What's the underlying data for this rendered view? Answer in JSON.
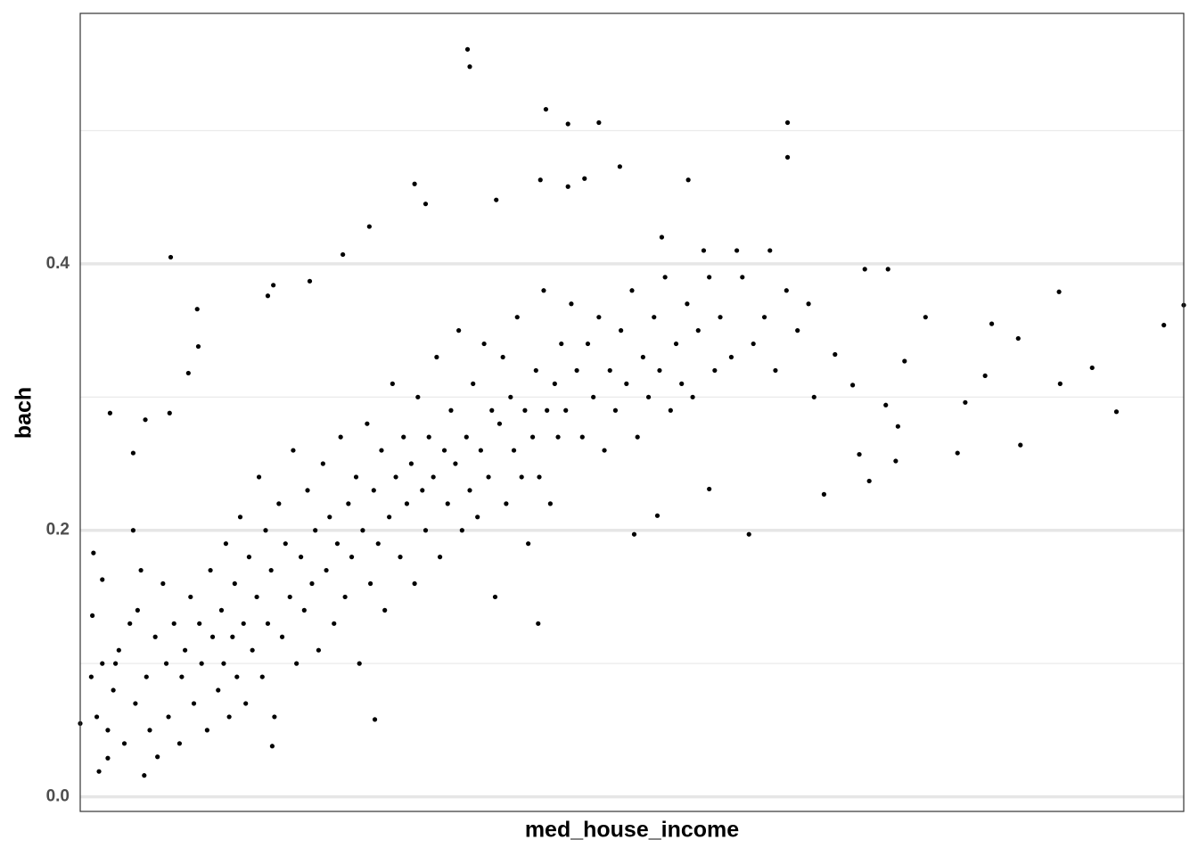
{
  "chart_data": {
    "type": "scatter",
    "x_label": "med_house_income",
    "y_label": "bach",
    "color": "#000000",
    "xlim": [
      0,
      100
    ],
    "ylim": [
      -0.011,
      0.588
    ],
    "yticks": [
      {
        "value": 0,
        "label": "0.0"
      },
      0.2,
      0.4
    ],
    "minor_yticks": [
      0.1,
      0.3,
      0.5
    ],
    "grid": true,
    "x": [
      35.1,
      35.3,
      42.2,
      44.2,
      47.0,
      64.1,
      64.1,
      48.9,
      30.3,
      31.3,
      41.7,
      44.2,
      45.7,
      55.1,
      37.7,
      26.2,
      23.8,
      8.2,
      100,
      98.2,
      93.9,
      91.7,
      88.7,
      88.8,
      85.0,
      85.2,
      82.6,
      82.0,
      80.2,
      79.5,
      76.6,
      74.7,
      74.1,
      73.9,
      73.2,
      71.1,
      73.0,
      71.5,
      70.6,
      70.0,
      67.4,
      68.4,
      60.6,
      57.0,
      52.3,
      50.2,
      0,
      5.8,
      1.7,
      2.5,
      26.7,
      17.4,
      41.5,
      2.7,
      4.8,
      5.9,
      8.1,
      9.8,
      10.6,
      10.7,
      1.2,
      2.0,
      1.1,
      17.0,
      17.5,
      20.8,
      1,
      1.5,
      2,
      2.5,
      3,
      3.5,
      4,
      4.5,
      5,
      5.2,
      3.2,
      4.8,
      5.5,
      6,
      6.3,
      6.8,
      7,
      7.5,
      7.8,
      8,
      8.5,
      9,
      9.2,
      9.5,
      10,
      10.3,
      10.8,
      11,
      11.5,
      11.8,
      12,
      12.5,
      12.8,
      13,
      13.2,
      13.5,
      13.8,
      14,
      14.2,
      14.5,
      14.8,
      15,
      15.3,
      15.6,
      16,
      16.2,
      16.5,
      16.8,
      17,
      17.3,
      17.6,
      18,
      18.3,
      18.6,
      19,
      19.3,
      19.6,
      20,
      20.3,
      20.6,
      21,
      21.3,
      21.6,
      22,
      22.3,
      22.6,
      23,
      23.3,
      23.6,
      24,
      24.3,
      24.6,
      25,
      25.3,
      25.6,
      26,
      26.3,
      26.6,
      27,
      27.3,
      27.6,
      28,
      28.3,
      28.6,
      29,
      29.3,
      29.6,
      30,
      30.3,
      30.6,
      31,
      31.3,
      31.6,
      32,
      32.3,
      32.6,
      33,
      33.3,
      33.6,
      34,
      34.3,
      34.6,
      35,
      35.3,
      35.6,
      36,
      36.3,
      36.6,
      37,
      37.3,
      37.6,
      38,
      38.3,
      38.6,
      39,
      39.3,
      39.6,
      40,
      40.3,
      40.6,
      41,
      41.3,
      41.6,
      42,
      42.3,
      42.6,
      43,
      43.3,
      43.6,
      44,
      44.5,
      45,
      45.5,
      46,
      46.5,
      47,
      47.5,
      48,
      48.5,
      49,
      49.5,
      50,
      50.5,
      51,
      51.5,
      52,
      52.5,
      53,
      53.5,
      54,
      54.5,
      55,
      55.5,
      56,
      57,
      57.5,
      58,
      59,
      60,
      61,
      62,
      63,
      64,
      65,
      66,
      66.5,
      62.5,
      59.5,
      56.5,
      52.7
    ],
    "values": [
      0.561,
      0.548,
      0.516,
      0.505,
      0.506,
      0.506,
      0.48,
      0.473,
      0.46,
      0.445,
      0.463,
      0.458,
      0.464,
      0.463,
      0.448,
      0.428,
      0.407,
      0.405,
      0.369,
      0.354,
      0.289,
      0.322,
      0.379,
      0.31,
      0.344,
      0.264,
      0.355,
      0.316,
      0.296,
      0.258,
      0.36,
      0.327,
      0.278,
      0.252,
      0.396,
      0.396,
      0.294,
      0.237,
      0.257,
      0.309,
      0.227,
      0.332,
      0.197,
      0.231,
      0.211,
      0.197,
      0.055,
      0.016,
      0.019,
      0.029,
      0.058,
      0.038,
      0.13,
      0.288,
      0.258,
      0.283,
      0.288,
      0.318,
      0.366,
      0.338,
      0.183,
      0.163,
      0.136,
      0.376,
      0.384,
      0.387,
      0.09,
      0.06,
      0.1,
      0.05,
      0.08,
      0.11,
      0.04,
      0.13,
      0.07,
      0.14,
      0.1,
      0.2,
      0.17,
      0.09,
      0.05,
      0.12,
      0.03,
      0.16,
      0.1,
      0.06,
      0.13,
      0.04,
      0.09,
      0.11,
      0.15,
      0.07,
      0.13,
      0.1,
      0.05,
      0.17,
      0.12,
      0.08,
      0.14,
      0.1,
      0.19,
      0.06,
      0.12,
      0.16,
      0.09,
      0.21,
      0.13,
      0.07,
      0.18,
      0.11,
      0.15,
      0.24,
      0.09,
      0.2,
      0.13,
      0.17,
      0.06,
      0.22,
      0.12,
      0.19,
      0.15,
      0.26,
      0.1,
      0.18,
      0.14,
      0.23,
      0.16,
      0.2,
      0.11,
      0.25,
      0.17,
      0.21,
      0.13,
      0.19,
      0.27,
      0.15,
      0.22,
      0.18,
      0.24,
      0.1,
      0.2,
      0.28,
      0.16,
      0.23,
      0.19,
      0.26,
      0.14,
      0.21,
      0.31,
      0.24,
      0.18,
      0.27,
      0.22,
      0.25,
      0.16,
      0.3,
      0.23,
      0.2,
      0.27,
      0.24,
      0.33,
      0.18,
      0.26,
      0.22,
      0.29,
      0.25,
      0.35,
      0.2,
      0.27,
      0.23,
      0.31,
      0.21,
      0.26,
      0.34,
      0.24,
      0.29,
      0.15,
      0.28,
      0.33,
      0.22,
      0.3,
      0.26,
      0.36,
      0.24,
      0.29,
      0.19,
      0.27,
      0.32,
      0.24,
      0.38,
      0.29,
      0.22,
      0.31,
      0.27,
      0.34,
      0.29,
      0.37,
      0.32,
      0.27,
      0.34,
      0.3,
      0.36,
      0.26,
      0.32,
      0.29,
      0.35,
      0.31,
      0.38,
      0.27,
      0.33,
      0.3,
      0.36,
      0.32,
      0.39,
      0.29,
      0.34,
      0.31,
      0.37,
      0.3,
      0.35,
      0.39,
      0.32,
      0.36,
      0.33,
      0.39,
      0.34,
      0.36,
      0.32,
      0.38,
      0.35,
      0.37,
      0.3,
      0.41,
      0.41,
      0.41,
      0.42
    ]
  }
}
